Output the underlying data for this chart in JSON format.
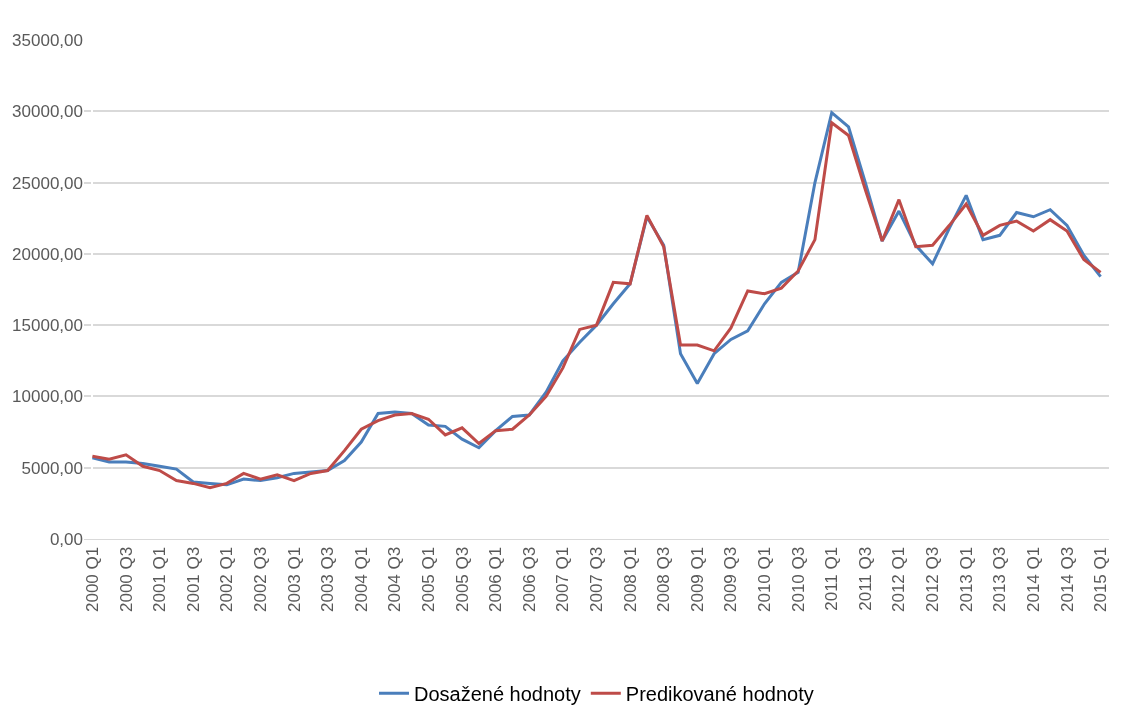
{
  "chart_data": {
    "type": "line",
    "categories": [
      "2000 Q1",
      null,
      "2000 Q3",
      null,
      "2001 Q1",
      null,
      "2001 Q3",
      null,
      "2002 Q1",
      null,
      "2002 Q3",
      null,
      "2003 Q1",
      null,
      "2003 Q3",
      null,
      "2004 Q1",
      null,
      "2004 Q3",
      null,
      "2005 Q1",
      null,
      "2005 Q3",
      null,
      "2006 Q1",
      null,
      "2006 Q3",
      null,
      "2007 Q1",
      null,
      "2007 Q3",
      null,
      "2008 Q1",
      null,
      "2008 Q3",
      null,
      "2009 Q1",
      null,
      "2009 Q3",
      null,
      "2010 Q1",
      null,
      "2010 Q3",
      null,
      "2011 Q1",
      null,
      "2011 Q3",
      null,
      "2012 Q1",
      null,
      "2012 Q3",
      null,
      "2013 Q1",
      null,
      "2013 Q3",
      null,
      "2014 Q1",
      null,
      "2014 Q3",
      null,
      "2015 Q1"
    ],
    "series": [
      {
        "name": "Dosažené hodnoty",
        "color": "#4a7ebb",
        "values": [
          5700,
          5400,
          5400,
          5300,
          5100,
          4900,
          4000,
          3900,
          3800,
          4200,
          4100,
          4300,
          4600,
          4700,
          4800,
          5500,
          6800,
          8800,
          8900,
          8800,
          8000,
          7900,
          7000,
          6400,
          7600,
          8600,
          8700,
          10300,
          12500,
          13800,
          15000,
          16500,
          17900,
          22600,
          20600,
          13000,
          10900,
          13000,
          14000,
          14600,
          16500,
          18000,
          18700,
          25000,
          29900,
          28900,
          25000,
          20900,
          23000,
          20600,
          19300,
          21800,
          24100,
          21000,
          21300,
          22900,
          22600,
          23100,
          22000,
          19900,
          18400
        ]
      },
      {
        "name": "Predikované hodnoty",
        "color": "#be4b48",
        "values": [
          5800,
          5600,
          5900,
          5100,
          4800,
          4100,
          3900,
          3600,
          3900,
          4600,
          4200,
          4500,
          4100,
          4600,
          4800,
          6200,
          7700,
          8300,
          8700,
          8800,
          8400,
          7300,
          7800,
          6700,
          7600,
          7700,
          8700,
          10000,
          12000,
          14700,
          15000,
          18000,
          17900,
          22700,
          20500,
          13600,
          13600,
          13200,
          14800,
          17400,
          17200,
          17600,
          18800,
          21000,
          29200,
          28300,
          24500,
          20900,
          23800,
          20500,
          20600,
          22000,
          23500,
          21300,
          22000,
          22300,
          21600,
          22400,
          21600,
          19600,
          18700
        ]
      }
    ],
    "ylim": [
      0,
      35000
    ],
    "yticks": [
      {
        "value": 0,
        "label": "0,00"
      },
      {
        "value": 5000,
        "label": "5000,00"
      },
      {
        "value": 10000,
        "label": "10000,00"
      },
      {
        "value": 15000,
        "label": "15000,00"
      },
      {
        "value": 20000,
        "label": "20000,00"
      },
      {
        "value": 25000,
        "label": "25000,00"
      },
      {
        "value": 30000,
        "label": "30000,00"
      },
      {
        "value": 35000,
        "label": "35000,00"
      }
    ],
    "grid": "y",
    "legend": "bottom",
    "marker": "none",
    "line_style": "solid"
  }
}
